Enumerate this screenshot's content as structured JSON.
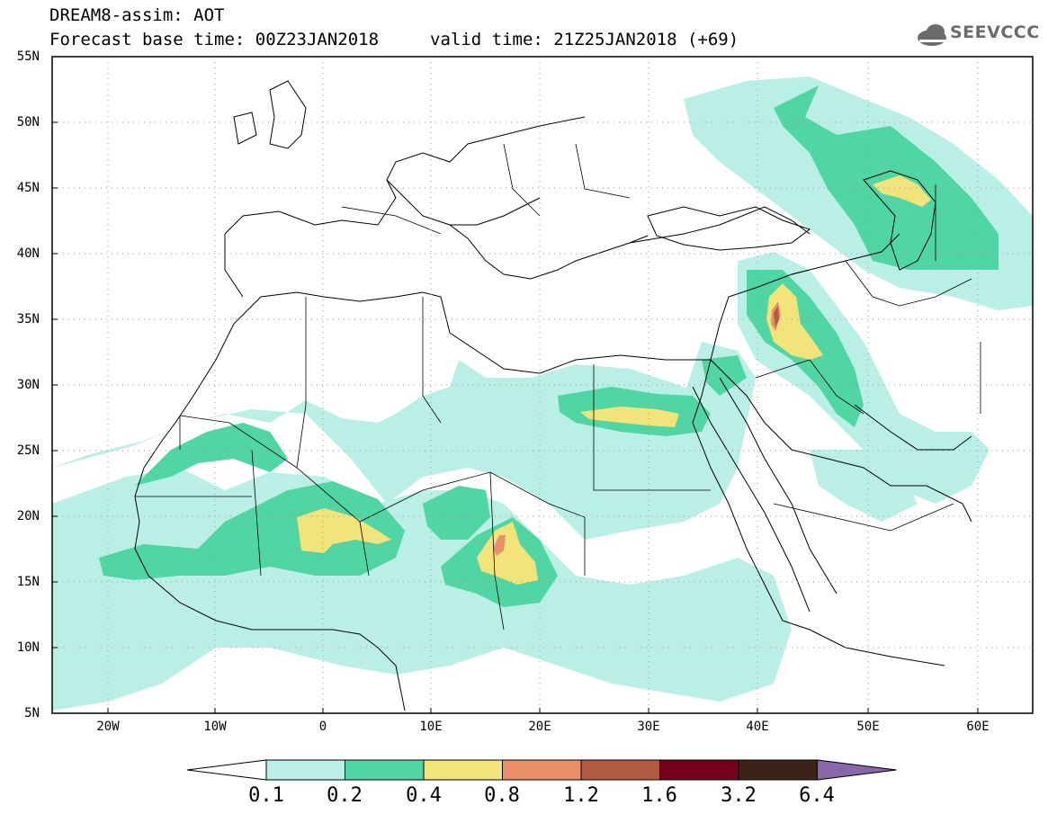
{
  "header": {
    "product": "DREAM8-assim: AOT",
    "base_time": "Forecast base time: 00Z23JAN2018",
    "valid_time": "valid time: 21Z25JAN2018 (+69)",
    "logo_text": "SEEVCCC"
  },
  "axes": {
    "latitudes": [
      "55N",
      "50N",
      "45N",
      "40N",
      "35N",
      "30N",
      "25N",
      "20N",
      "15N",
      "10N",
      "5N"
    ],
    "longitudes": [
      "20W",
      "10W",
      "0",
      "10E",
      "20E",
      "30E",
      "40E",
      "50E",
      "60E"
    ],
    "lat_range": [
      5,
      55
    ],
    "lon_range": [
      -25,
      65
    ]
  },
  "legend": {
    "labels": [
      "0.1",
      "0.2",
      "0.4",
      "0.8",
      "1.2",
      "1.6",
      "3.2",
      "6.4"
    ],
    "colors": [
      "#ffffff",
      "#b9efe4",
      "#4fd6a3",
      "#f2e47a",
      "#e9906b",
      "#b35a43",
      "#78001f",
      "#3b2416",
      "#8a67a8"
    ]
  }
}
